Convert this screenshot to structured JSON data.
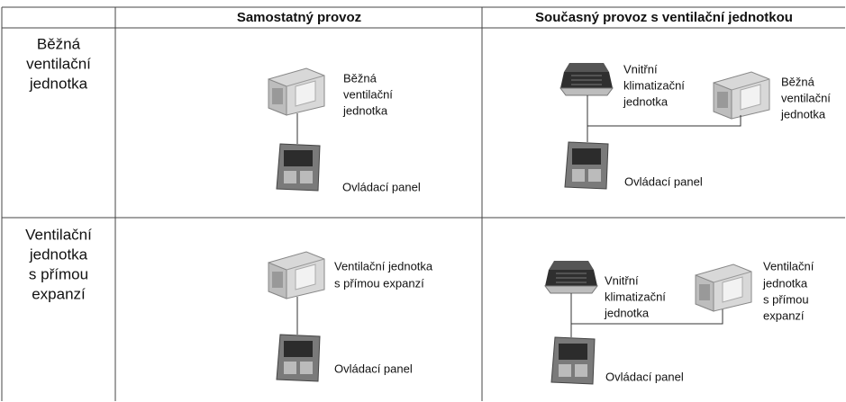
{
  "table": {
    "columns": [
      "Samostatný provoz",
      "Současný provoz s ventilační jednotkou"
    ],
    "rows": [
      {
        "label": [
          "Běžná",
          "ventilační",
          "jednotka"
        ],
        "standalone": {
          "unit": [
            "Běžná",
            "ventilační",
            "jednotka"
          ],
          "panel": "Ovládací panel"
        },
        "combined": {
          "indoor": [
            "Vnitřní",
            "klimatizační",
            "jednotka"
          ],
          "unit": [
            "Běžná",
            "ventilační",
            "jednotka"
          ],
          "panel": "Ovládací panel"
        }
      },
      {
        "label": [
          "Ventilační",
          "jednotka",
          "s přímou",
          "expanzí"
        ],
        "standalone": {
          "unit": [
            "Ventilační jednotka",
            "s přímou expanzí"
          ],
          "panel": "Ovládací panel"
        },
        "combined": {
          "indoor": [
            "Vnitřní",
            "klimatizační",
            "jednotka"
          ],
          "unit": [
            "Ventilační",
            "jednotka",
            "s přímou",
            "expanzí"
          ],
          "panel": "Ovládací panel"
        }
      }
    ]
  }
}
